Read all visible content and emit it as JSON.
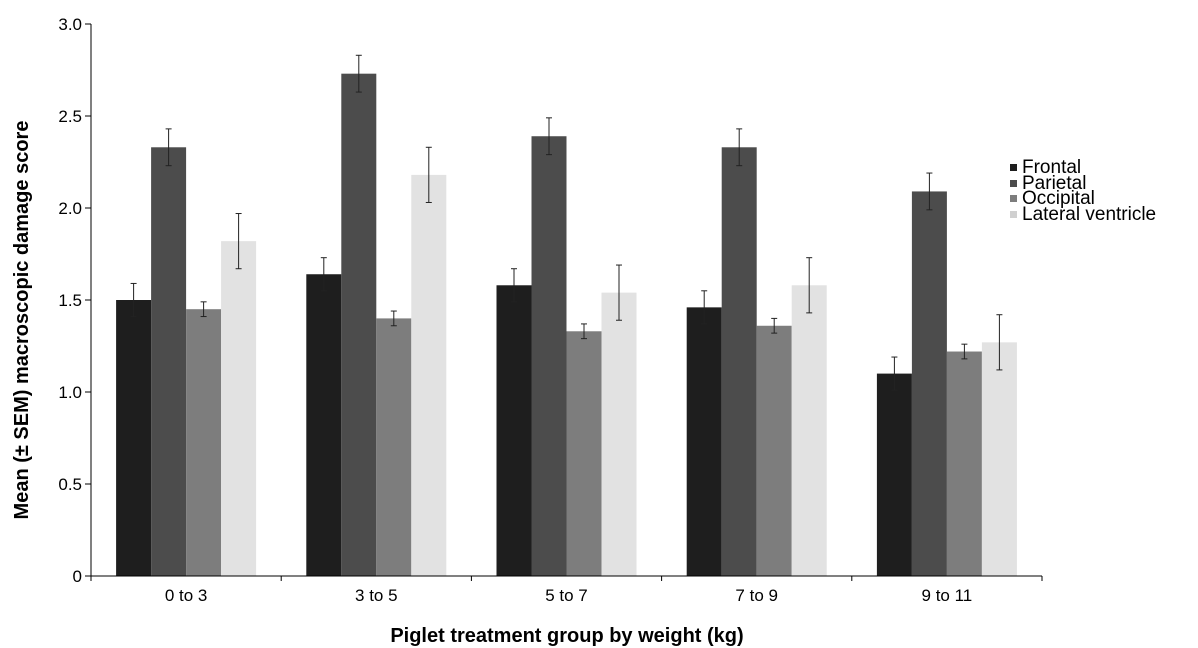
{
  "chart_data": {
    "type": "bar",
    "xlabel": "Piglet treatment group by weight (kg)",
    "ylabel": "Mean (± SEM) macroscopic damage score",
    "categories": [
      "0 to 3",
      "3 to 5",
      "5 to 7",
      "7 to 9",
      "9 to 11"
    ],
    "ylim": [
      0,
      3.0
    ],
    "yticks": [
      "0",
      "0.5",
      "1.0",
      "1.5",
      "2.0",
      "2.5",
      "3.0"
    ],
    "grid": false,
    "legend_position": "right",
    "series": [
      {
        "name": "Frontal",
        "color": "#1e1e1e",
        "values": [
          1.5,
          1.64,
          1.58,
          1.46,
          1.1
        ],
        "errors": [
          0.09,
          0.09,
          0.09,
          0.09,
          0.09
        ]
      },
      {
        "name": "Parietal",
        "color": "#4c4c4c",
        "values": [
          2.33,
          2.73,
          2.39,
          2.33,
          2.09
        ],
        "errors": [
          0.1,
          0.1,
          0.1,
          0.1,
          0.1
        ]
      },
      {
        "name": "Occipital",
        "color": "#7d7d7d",
        "values": [
          1.45,
          1.4,
          1.33,
          1.36,
          1.22
        ],
        "errors": [
          0.04,
          0.04,
          0.04,
          0.04,
          0.04
        ]
      },
      {
        "name": "Lateral ventricle",
        "color": "#e2e2e2",
        "values": [
          1.82,
          2.18,
          1.54,
          1.58,
          1.27
        ],
        "errors": [
          0.15,
          0.15,
          0.15,
          0.15,
          0.15
        ]
      }
    ]
  }
}
